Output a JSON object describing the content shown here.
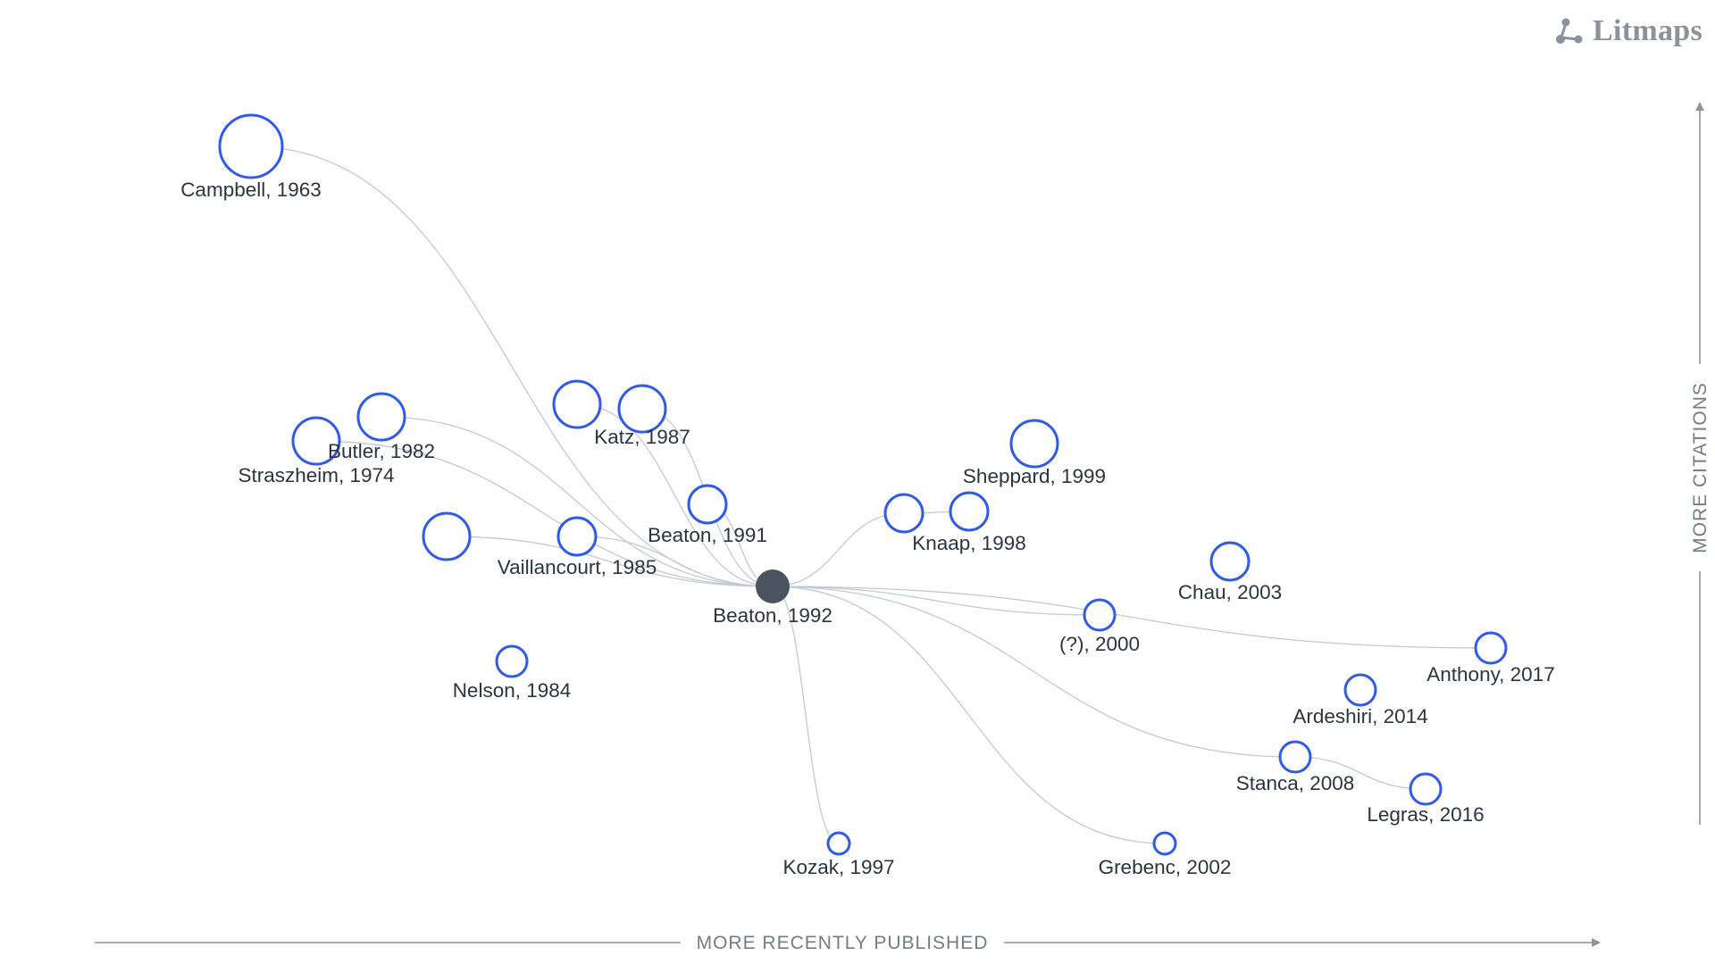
{
  "brand": {
    "name": "Litmaps",
    "icon": "litmaps-logo-icon",
    "color": "#8b929b"
  },
  "axes": {
    "x_label": "MORE RECENTLY PUBLISHED",
    "y_label": "MORE CITATIONS",
    "color": "#8d949c"
  },
  "colors": {
    "node_stroke": "#2f5be8",
    "center_node": "#4a5460",
    "edge": "#c4c9d1",
    "label": "#2c3440"
  },
  "center_paper": "Beaton, 1992",
  "papers": [
    {
      "id": "campbell-1963",
      "label": "Campbell, 1963",
      "size": "xlarge"
    },
    {
      "id": "straszheim-1974",
      "label": "Straszheim, 1974",
      "size": "large"
    },
    {
      "id": "butler-1982",
      "label": "Butler, 1982",
      "size": "large"
    },
    {
      "id": "unlabeled-a",
      "label": "",
      "size": "large"
    },
    {
      "id": "katz-1987",
      "label": "Katz, 1987",
      "size": "large"
    },
    {
      "id": "unlabeled-b",
      "label": "",
      "size": "large"
    },
    {
      "id": "vaillancourt-1985",
      "label": "Vaillancourt, 1985",
      "size": "medium"
    },
    {
      "id": "beaton-1991",
      "label": "Beaton, 1991",
      "size": "medium"
    },
    {
      "id": "nelson-1984",
      "label": "Nelson, 1984",
      "size": "small"
    },
    {
      "id": "beaton-1992",
      "label": "Beaton, 1992",
      "size": "center"
    },
    {
      "id": "kozak-1997",
      "label": "Kozak, 1997",
      "size": "tiny"
    },
    {
      "id": "unlabeled-c",
      "label": "",
      "size": "medium"
    },
    {
      "id": "knaap-1998",
      "label": "Knaap, 1998",
      "size": "medium"
    },
    {
      "id": "sheppard-1999",
      "label": "Sheppard, 1999",
      "size": "large"
    },
    {
      "id": "unknown-2000",
      "label": "(?), 2000",
      "size": "small"
    },
    {
      "id": "grebenc-2002",
      "label": "Grebenc, 2002",
      "size": "tiny"
    },
    {
      "id": "chau-2003",
      "label": "Chau, 2003",
      "size": "medium"
    },
    {
      "id": "stanca-2008",
      "label": "Stanca, 2008",
      "size": "small"
    },
    {
      "id": "ardeshiri-2014",
      "label": "Ardeshiri, 2014",
      "size": "small"
    },
    {
      "id": "legras-2016",
      "label": "Legras, 2016",
      "size": "small"
    },
    {
      "id": "anthony-2017",
      "label": "Anthony, 2017",
      "size": "small"
    }
  ],
  "links": [
    [
      "campbell-1963",
      "beaton-1992"
    ],
    [
      "straszheim-1974",
      "beaton-1992"
    ],
    [
      "butler-1982",
      "beaton-1992"
    ],
    [
      "unlabeled-a",
      "beaton-1992"
    ],
    [
      "katz-1987",
      "beaton-1992"
    ],
    [
      "unlabeled-b",
      "beaton-1992"
    ],
    [
      "vaillancourt-1985",
      "beaton-1992"
    ],
    [
      "beaton-1991",
      "beaton-1992"
    ],
    [
      "beaton-1992",
      "kozak-1997"
    ],
    [
      "beaton-1992",
      "unlabeled-c"
    ],
    [
      "unlabeled-c",
      "knaap-1998"
    ],
    [
      "beaton-1992",
      "unknown-2000"
    ],
    [
      "beaton-1992",
      "grebenc-2002"
    ],
    [
      "beaton-1992",
      "stanca-2008"
    ],
    [
      "beaton-1992",
      "anthony-2017"
    ],
    [
      "stanca-2008",
      "legras-2016"
    ]
  ]
}
